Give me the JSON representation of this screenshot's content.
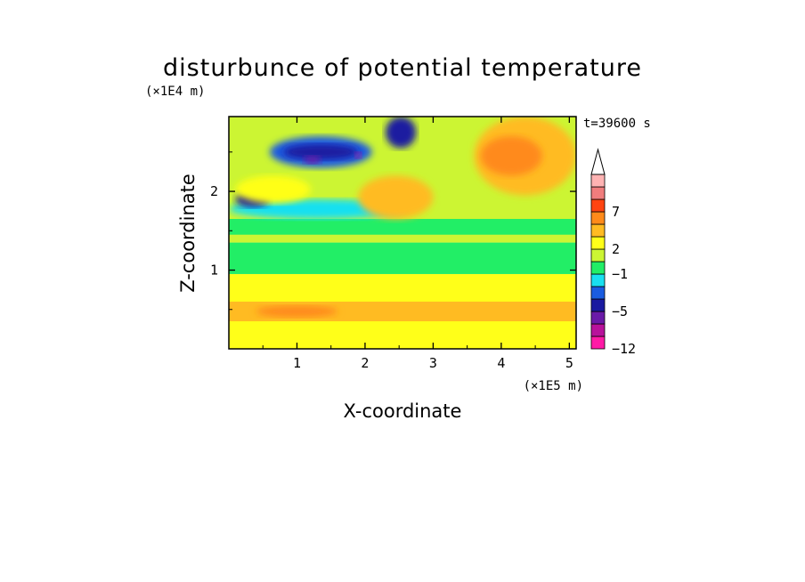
{
  "chart_data": {
    "type": "heatmap",
    "title": "disturbunce of potential temperature",
    "xlabel": "X-coordinate",
    "ylabel": "Z-coordinate",
    "x_unit": "(×1E5 m)",
    "y_unit": "(×1E4 m)",
    "time_label": "t=39600 s",
    "xlim": [
      0,
      5.1
    ],
    "ylim": [
      0,
      2.95
    ],
    "x_ticks": [
      "1",
      "2",
      "3",
      "4",
      "5"
    ],
    "y_ticks": [
      "1",
      "2"
    ],
    "colorbar": {
      "tick_labels": [
        "7",
        "2",
        "−1",
        "−5",
        "−12"
      ],
      "levels": [
        {
          "color": "#ff1aa6"
        },
        {
          "color": "#b8129b"
        },
        {
          "color": "#6a1aa8"
        },
        {
          "color": "#1a1aa0"
        },
        {
          "color": "#1a5ce0"
        },
        {
          "color": "#19e0f0"
        },
        {
          "color": "#22ee66"
        },
        {
          "color": "#ccf533"
        },
        {
          "color": "#ffff19"
        },
        {
          "color": "#ffbb22"
        },
        {
          "color": "#ff8a1a"
        },
        {
          "color": "#ff4411"
        },
        {
          "color": "#f07d7d"
        },
        {
          "color": "#ffb3b3"
        }
      ],
      "extend": "max"
    },
    "field_regions": [
      {
        "x": [
          0.0,
          5.1
        ],
        "z": [
          0.0,
          0.95
        ],
        "level": 8
      },
      {
        "x": [
          0.0,
          5.1
        ],
        "z": [
          0.35,
          0.6
        ],
        "level": 9
      },
      {
        "x": [
          0.4,
          1.6
        ],
        "z": [
          0.4,
          0.55
        ],
        "level": 10
      },
      {
        "x": [
          0.0,
          5.1
        ],
        "z": [
          0.95,
          1.35
        ],
        "level": 6
      },
      {
        "x": [
          0.0,
          5.1
        ],
        "z": [
          1.35,
          2.95
        ],
        "level": 7
      },
      {
        "x": [
          0.0,
          5.1
        ],
        "z": [
          1.45,
          1.65
        ],
        "level": 6
      },
      {
        "x": [
          0.0,
          2.6
        ],
        "z": [
          1.65,
          1.9
        ],
        "level": 5
      },
      {
        "x": [
          0.6,
          2.1
        ],
        "z": [
          2.3,
          2.7
        ],
        "level": 4
      },
      {
        "x": [
          0.8,
          1.9
        ],
        "z": [
          2.4,
          2.6
        ],
        "level": 3
      },
      {
        "x": [
          1.1,
          1.35
        ],
        "z": [
          2.35,
          2.45
        ],
        "level": 2
      },
      {
        "x": [
          1.85,
          1.95
        ],
        "z": [
          2.42,
          2.5
        ],
        "level": 1
      },
      {
        "x": [
          2.3,
          2.75
        ],
        "z": [
          2.55,
          2.95
        ],
        "level": 3
      },
      {
        "x": [
          0.1,
          0.6
        ],
        "z": [
          1.8,
          2.0
        ],
        "level": 3
      },
      {
        "x": [
          1.9,
          3.0
        ],
        "z": [
          1.65,
          2.2
        ],
        "level": 9
      },
      {
        "x": [
          3.6,
          5.1
        ],
        "z": [
          1.95,
          2.95
        ],
        "level": 9
      },
      {
        "x": [
          3.7,
          4.6
        ],
        "z": [
          2.2,
          2.7
        ],
        "level": 10
      },
      {
        "x": [
          0.1,
          1.2
        ],
        "z": [
          1.85,
          2.2
        ],
        "level": 8
      }
    ]
  }
}
